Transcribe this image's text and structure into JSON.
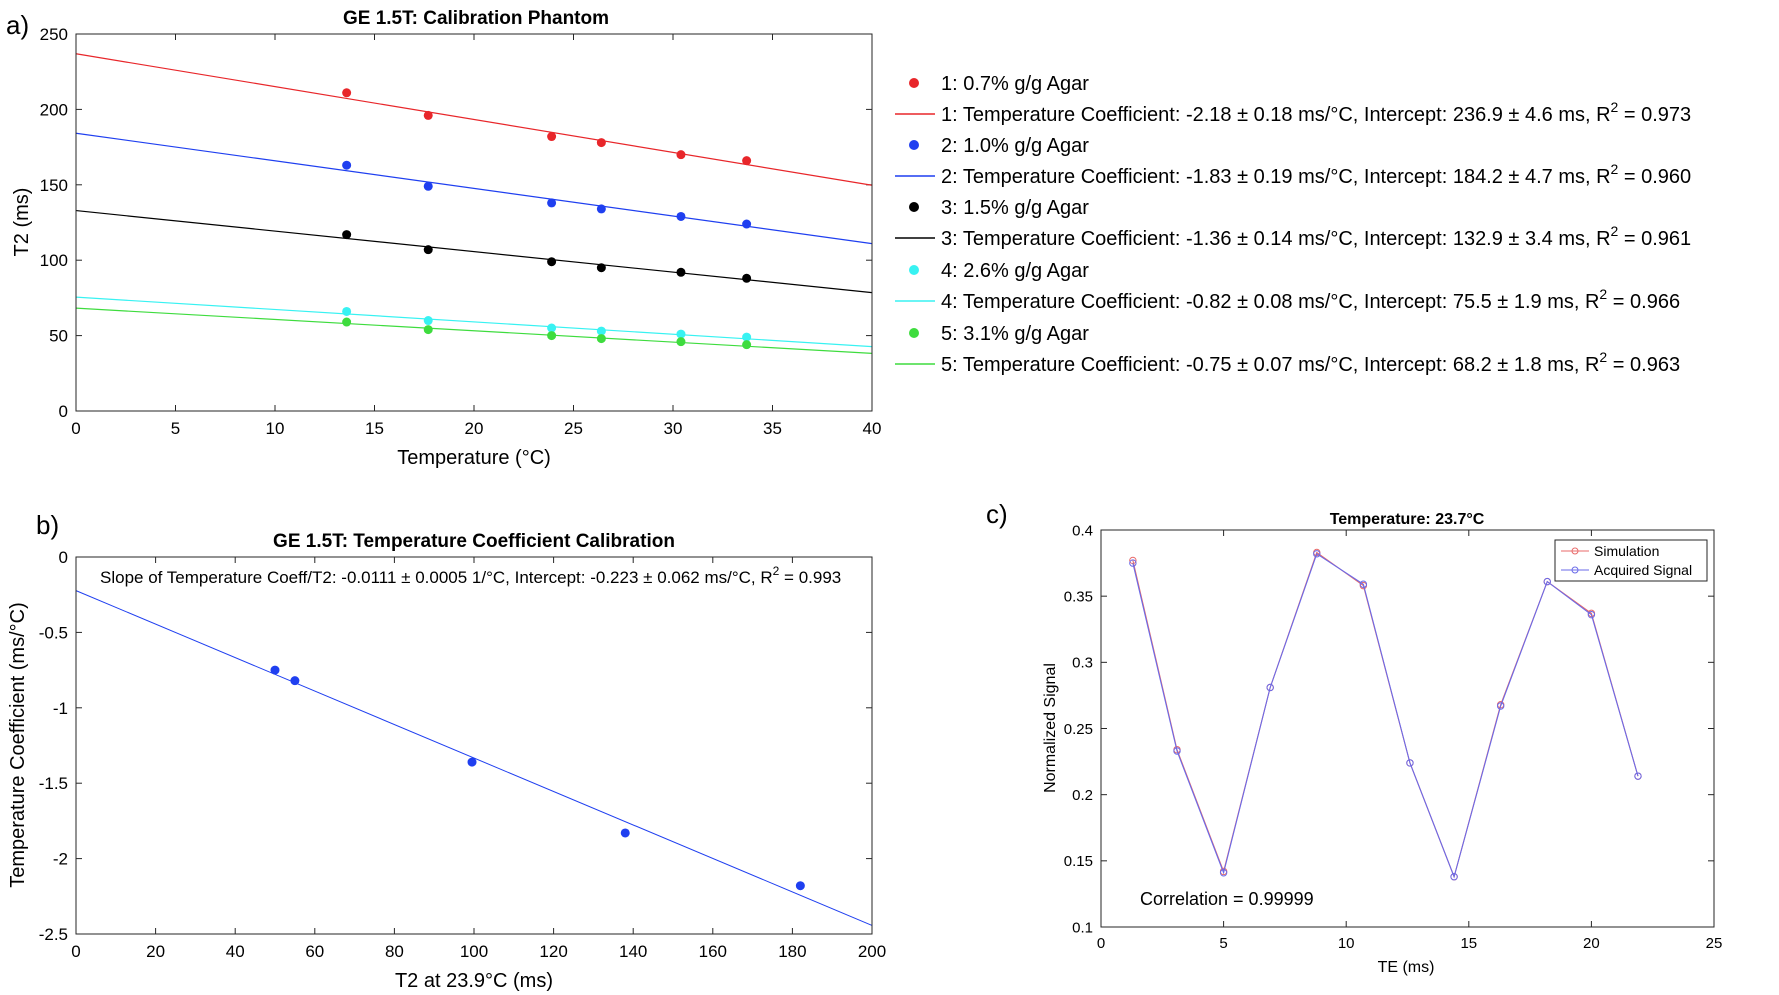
{
  "chart_data": [
    {
      "panel": "a)",
      "type": "scatter",
      "title": "GE 1.5T: Calibration Phantom",
      "xlabel": "Temperature (°C)",
      "ylabel": "T2 (ms)",
      "xlim": [
        0,
        40
      ],
      "ylim": [
        0,
        250
      ],
      "xticks": [
        0,
        5,
        10,
        15,
        20,
        25,
        30,
        35,
        40
      ],
      "yticks": [
        0,
        50,
        100,
        150,
        200,
        250
      ],
      "x": [
        13.6,
        17.7,
        23.9,
        26.4,
        30.4,
        33.7
      ],
      "series": [
        {
          "name": "1: 0.7% g/g Agar",
          "color": "#e8262a",
          "values": [
            211,
            196,
            182,
            178,
            170,
            166
          ],
          "fit_slope": -2.18,
          "fit_intercept": 236.9,
          "fit_label": "1: Temperature Coefficient: -2.18 ± 0.18 ms/°C, Intercept: 236.9 ± 4.6 ms, R",
          "r2": " = 0.973"
        },
        {
          "name": "2: 1.0% g/g Agar",
          "color": "#1f3ff0",
          "values": [
            163,
            149,
            138,
            134,
            129,
            124
          ],
          "fit_slope": -1.83,
          "fit_intercept": 184.2,
          "fit_label": "2: Temperature Coefficient: -1.83 ± 0.19 ms/°C, Intercept: 184.2 ± 4.7 ms, R",
          "r2": " = 0.960"
        },
        {
          "name": "3: 1.5% g/g Agar",
          "color": "#000000",
          "values": [
            117,
            107,
            99,
            95,
            92,
            88
          ],
          "fit_slope": -1.36,
          "fit_intercept": 132.9,
          "fit_label": "3: Temperature Coefficient: -1.36 ± 0.14 ms/°C, Intercept: 132.9 ± 3.4 ms, R",
          "r2": " = 0.961"
        },
        {
          "name": "4: 2.6% g/g Agar",
          "color": "#38f2f2",
          "values": [
            66,
            60,
            55,
            53,
            51,
            49
          ],
          "fit_slope": -0.82,
          "fit_intercept": 75.5,
          "fit_label": "4: Temperature Coefficient: -0.82 ± 0.08 ms/°C, Intercept: 75.5 ± 1.9 ms, R",
          "r2": " = 0.966"
        },
        {
          "name": "5: 3.1% g/g Agar",
          "color": "#3edc3e",
          "values": [
            59,
            54,
            50,
            48,
            46,
            44
          ],
          "fit_slope": -0.75,
          "fit_intercept": 68.2,
          "fit_label": "5: Temperature Coefficient: -0.75 ± 0.07 ms/°C, Intercept: 68.2 ± 1.8 ms, R",
          "r2": " = 0.963"
        }
      ]
    },
    {
      "panel": "b)",
      "type": "scatter",
      "title": "GE 1.5T: Temperature Coefficient Calibration",
      "annotation": "Slope of Temperature Coeff/T2: -0.0111 ± 0.0005 1/°C, Intercept: -0.223 ± 0.062 ms/°C, R",
      "annotation_r2": " = 0.993",
      "xlabel": "T2 at 23.9°C (ms)",
      "ylabel": "Temperature Coefficient (ms/°C)",
      "xlim": [
        0,
        200
      ],
      "ylim": [
        -2.5,
        0
      ],
      "xticks": [
        0,
        20,
        40,
        60,
        80,
        100,
        120,
        140,
        160,
        180,
        200
      ],
      "yticks": [
        0,
        -0.5,
        -1,
        -1.5,
        -2,
        -2.5
      ],
      "yticklabels": [
        "0",
        "-0.5",
        "-1",
        "-1.5",
        "-2",
        "-2.5"
      ],
      "x": [
        50,
        55,
        99.5,
        138,
        182
      ],
      "values": [
        -0.75,
        -0.82,
        -1.36,
        -1.83,
        -2.18
      ],
      "color": "#1f3ff0",
      "fit_slope": -0.0111,
      "fit_intercept": -0.223
    },
    {
      "panel": "c)",
      "type": "line",
      "title": "Temperature: 23.7°C",
      "xlabel": "TE (ms)",
      "ylabel": "Normalized Signal",
      "xlim": [
        0,
        25
      ],
      "ylim": [
        0.1,
        0.4
      ],
      "xticks": [
        0,
        5,
        10,
        15,
        20,
        25
      ],
      "yticks": [
        0.1,
        0.15,
        0.2,
        0.25,
        0.3,
        0.35,
        0.4
      ],
      "yticklabels": [
        "0.1",
        "0.15",
        "0.2",
        "0.25",
        "0.3",
        "0.35",
        "0.4"
      ],
      "x": [
        1.3,
        3.1,
        5.0,
        6.9,
        8.8,
        10.7,
        12.6,
        14.4,
        16.3,
        18.2,
        20.0,
        21.9
      ],
      "series": [
        {
          "name": "Simulation",
          "color": "#e86a6a",
          "values": [
            0.377,
            0.234,
            0.142,
            0.281,
            0.383,
            0.358,
            0.224,
            0.138,
            0.268,
            0.361,
            0.337,
            0.214
          ]
        },
        {
          "name": "Acquired Signal",
          "color": "#6a6ae8",
          "values": [
            0.375,
            0.233,
            0.141,
            0.281,
            0.382,
            0.359,
            0.224,
            0.138,
            0.267,
            0.361,
            0.336,
            0.214
          ]
        }
      ],
      "annotation": "Correlation = 0.99999"
    }
  ]
}
